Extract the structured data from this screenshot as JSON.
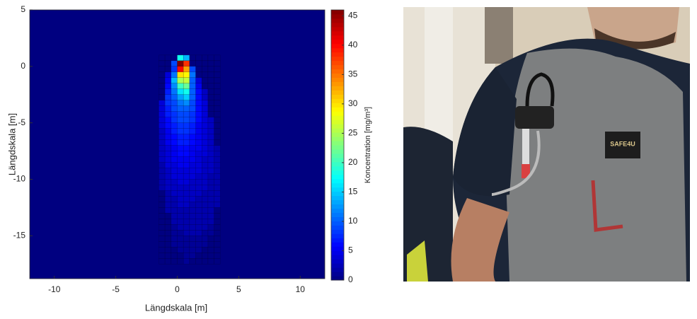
{
  "chart_data": {
    "type": "heatmap",
    "xlabel": "Längdskala [m]",
    "ylabel": "Längdskala [m]",
    "colorbar_label": "Koncentration [mg/m³]",
    "colormap": "jet",
    "xlim": [
      -12,
      12
    ],
    "ylim": [
      -18.8,
      5
    ],
    "xticks": [
      -10,
      -5,
      0,
      5,
      10
    ],
    "yticks": [
      -15,
      -10,
      -5,
      0,
      5
    ],
    "clim": [
      0,
      46
    ],
    "cticks": [
      0,
      5,
      10,
      15,
      20,
      25,
      30,
      35,
      40,
      45
    ],
    "x": [
      -1.25,
      -0.75,
      -0.25,
      0.25,
      0.75,
      1.25,
      1.75,
      2.25,
      2.75,
      3.25
    ],
    "y": [
      0.75,
      0.25,
      -0.25,
      -0.75,
      -1.25,
      -1.75,
      -2.25,
      -2.75,
      -3.25,
      -3.75,
      -4.25,
      -4.75,
      -5.25,
      -5.75,
      -6.25,
      -6.75,
      -7.25,
      -7.75,
      -8.25,
      -8.75,
      -9.25,
      -9.75,
      -10.25,
      -10.75,
      -11.25,
      -11.75,
      -12.25,
      -12.75,
      -13.25,
      -13.75,
      -14.25,
      -14.75,
      -15.25,
      -15.75,
      -16.25,
      -16.75,
      -17.25
    ],
    "z": [
      [
        0,
        0,
        0,
        18,
        14,
        0,
        0,
        0,
        0,
        0
      ],
      [
        0,
        0,
        9,
        46,
        38,
        0,
        0,
        0,
        0,
        0
      ],
      [
        0,
        0,
        8,
        40,
        33,
        9,
        0,
        0,
        0,
        0
      ],
      [
        0,
        4,
        11,
        30,
        29,
        11,
        0,
        0,
        0,
        0
      ],
      [
        0,
        5,
        14,
        25,
        26,
        10,
        4,
        0,
        0,
        0
      ],
      [
        0,
        6,
        12,
        20,
        22,
        10,
        5,
        0,
        0,
        0
      ],
      [
        0,
        7,
        11,
        16,
        18,
        10,
        6,
        3,
        0,
        0
      ],
      [
        0,
        8,
        10,
        13,
        15,
        10,
        6,
        3,
        0,
        0
      ],
      [
        4,
        8,
        9,
        11,
        12,
        9,
        6,
        4,
        0,
        0
      ],
      [
        4,
        7,
        9,
        10,
        10,
        9,
        6,
        4,
        0,
        0
      ],
      [
        4,
        7,
        8,
        9,
        9,
        8,
        6,
        4,
        0,
        0
      ],
      [
        4,
        6,
        8,
        9,
        9,
        8,
        6,
        4,
        3,
        0
      ],
      [
        4,
        6,
        7,
        8,
        8,
        7,
        5,
        4,
        3,
        0
      ],
      [
        3,
        5,
        7,
        8,
        8,
        7,
        5,
        4,
        3,
        0
      ],
      [
        3,
        5,
        6,
        7,
        7,
        6,
        5,
        4,
        3,
        0
      ],
      [
        3,
        5,
        6,
        7,
        7,
        6,
        5,
        4,
        3,
        0
      ],
      [
        3,
        4,
        5,
        6,
        6,
        5,
        5,
        4,
        3,
        2
      ],
      [
        3,
        4,
        5,
        6,
        6,
        5,
        4,
        4,
        3,
        2
      ],
      [
        3,
        4,
        5,
        5,
        5,
        5,
        4,
        3,
        3,
        2
      ],
      [
        2,
        4,
        4,
        5,
        5,
        4,
        4,
        3,
        3,
        2
      ],
      [
        2,
        3,
        4,
        4,
        4,
        4,
        4,
        3,
        3,
        2
      ],
      [
        2,
        3,
        4,
        4,
        4,
        4,
        3,
        3,
        2,
        2
      ],
      [
        2,
        3,
        3,
        4,
        4,
        3,
        3,
        3,
        2,
        2
      ],
      [
        2,
        3,
        3,
        3,
        3,
        3,
        3,
        3,
        2,
        2
      ],
      [
        0,
        2,
        3,
        3,
        3,
        3,
        3,
        2,
        2,
        2
      ],
      [
        0,
        2,
        2,
        3,
        3,
        3,
        2,
        2,
        2,
        2
      ],
      [
        0,
        2,
        2,
        3,
        3,
        2,
        2,
        2,
        2,
        2
      ],
      [
        0,
        2,
        2,
        2,
        2,
        2,
        2,
        2,
        2,
        0
      ],
      [
        0,
        0,
        2,
        2,
        2,
        2,
        2,
        2,
        2,
        0
      ],
      [
        0,
        0,
        2,
        2,
        2,
        2,
        2,
        2,
        2,
        0
      ],
      [
        0,
        0,
        1,
        2,
        2,
        2,
        2,
        2,
        1,
        0
      ],
      [
        0,
        0,
        1,
        1,
        2,
        2,
        2,
        1,
        1,
        0
      ],
      [
        0,
        0,
        1,
        1,
        1,
        1,
        1,
        1,
        0,
        0
      ],
      [
        0,
        0,
        1,
        1,
        1,
        1,
        1,
        1,
        0,
        0
      ],
      [
        0,
        0,
        0,
        1,
        1,
        1,
        1,
        0,
        0,
        0
      ],
      [
        0,
        0,
        0,
        0,
        1,
        1,
        0,
        0,
        0,
        0
      ],
      [
        0,
        0,
        0,
        0,
        1,
        0,
        0,
        0,
        0,
        0
      ]
    ]
  },
  "photo": {
    "label": "SAFE4U"
  }
}
